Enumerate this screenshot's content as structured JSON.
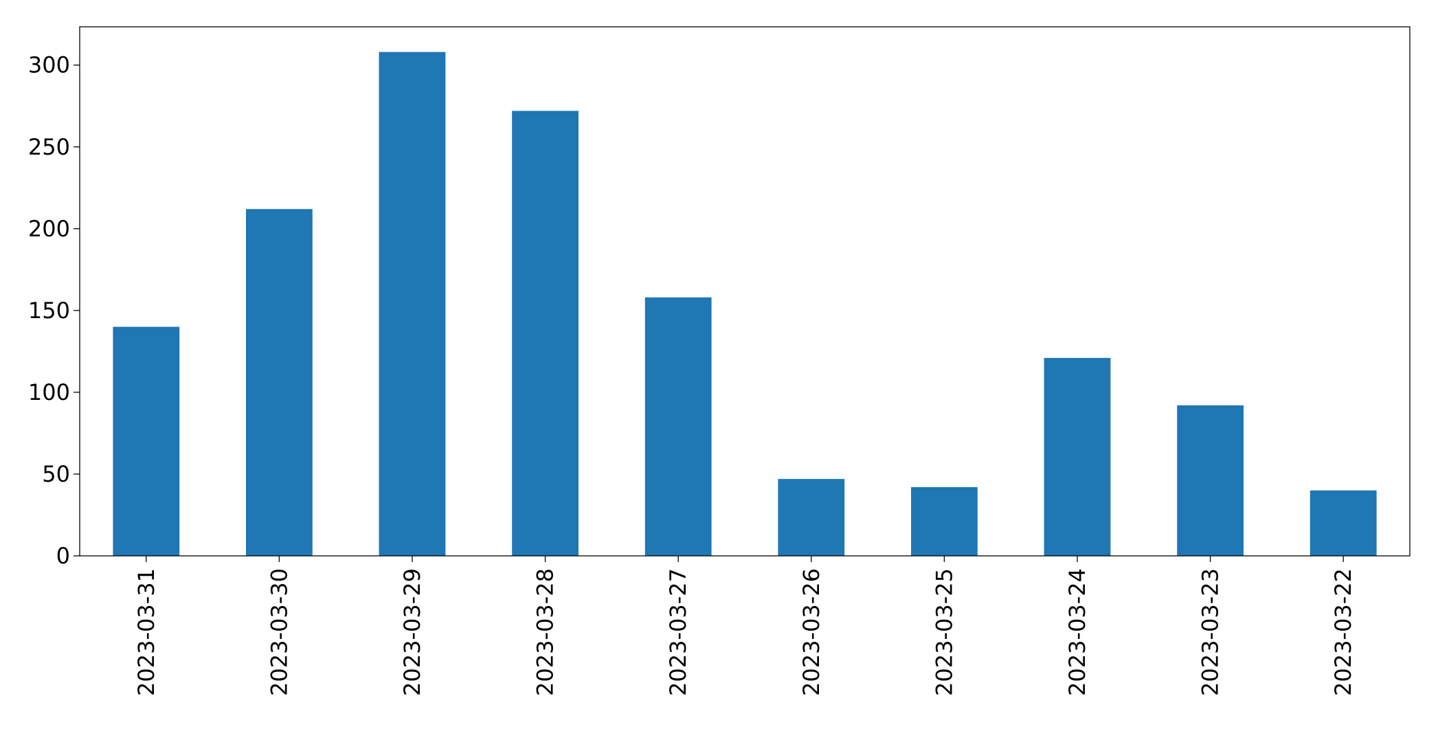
{
  "chart_data": {
    "type": "bar",
    "categories": [
      "2023-03-31",
      "2023-03-30",
      "2023-03-29",
      "2023-03-28",
      "2023-03-27",
      "2023-03-26",
      "2023-03-25",
      "2023-03-24",
      "2023-03-23",
      "2023-03-22"
    ],
    "values": [
      140,
      212,
      308,
      272,
      158,
      47,
      42,
      121,
      92,
      40
    ],
    "color": "#1f77b4",
    "ylim": [
      0,
      323.4
    ],
    "yticks": [
      0,
      50,
      100,
      150,
      200,
      250,
      300
    ],
    "grid": false
  }
}
